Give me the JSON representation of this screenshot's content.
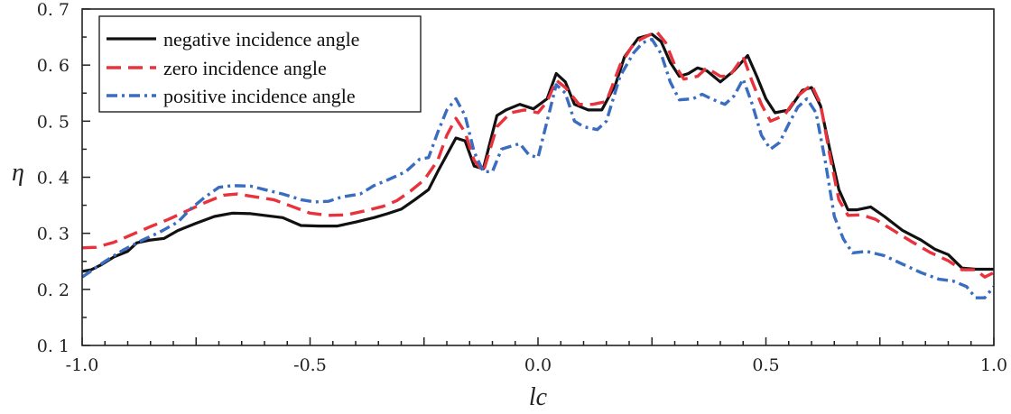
{
  "chart_data": {
    "type": "line",
    "title": "",
    "xlabel": "lc",
    "ylabel": "η",
    "xlim": [
      -1.0,
      1.0
    ],
    "ylim": [
      0.1,
      0.7
    ],
    "x_ticks": [
      {
        "value": -1.0,
        "label": "-1.0"
      },
      {
        "value": -0.5,
        "label": "-0.5"
      },
      {
        "value": 0.0,
        "label": "0.0"
      },
      {
        "value": 0.5,
        "label": "0.5"
      },
      {
        "value": 1.0,
        "label": "1.0"
      }
    ],
    "y_ticks": [
      {
        "value": 0.1,
        "label": "0. 1"
      },
      {
        "value": 0.2,
        "label": "0. 2"
      },
      {
        "value": 0.3,
        "label": "0. 3"
      },
      {
        "value": 0.4,
        "label": "0. 4"
      },
      {
        "value": 0.5,
        "label": "0. 5"
      },
      {
        "value": 0.6,
        "label": "0. 6"
      },
      {
        "value": 0.7,
        "label": "0. 7"
      }
    ],
    "legend_position": "top-left",
    "series": [
      {
        "name": "negative incidence angle",
        "color": "#111111",
        "style": "solid",
        "points": [
          [
            -1.0,
            0.232
          ],
          [
            -0.98,
            0.235
          ],
          [
            -0.96,
            0.243
          ],
          [
            -0.93,
            0.258
          ],
          [
            -0.9,
            0.268
          ],
          [
            -0.88,
            0.283
          ],
          [
            -0.85,
            0.288
          ],
          [
            -0.82,
            0.291
          ],
          [
            -0.79,
            0.305
          ],
          [
            -0.75,
            0.318
          ],
          [
            -0.71,
            0.33
          ],
          [
            -0.67,
            0.336
          ],
          [
            -0.63,
            0.335
          ],
          [
            -0.6,
            0.332
          ],
          [
            -0.56,
            0.328
          ],
          [
            -0.52,
            0.314
          ],
          [
            -0.48,
            0.313
          ],
          [
            -0.44,
            0.313
          ],
          [
            -0.4,
            0.32
          ],
          [
            -0.36,
            0.328
          ],
          [
            -0.33,
            0.335
          ],
          [
            -0.3,
            0.343
          ],
          [
            -0.27,
            0.36
          ],
          [
            -0.24,
            0.378
          ],
          [
            -0.22,
            0.41
          ],
          [
            -0.2,
            0.44
          ],
          [
            -0.18,
            0.47
          ],
          [
            -0.16,
            0.465
          ],
          [
            -0.14,
            0.42
          ],
          [
            -0.12,
            0.415
          ],
          [
            -0.09,
            0.51
          ],
          [
            -0.07,
            0.52
          ],
          [
            -0.04,
            0.53
          ],
          [
            -0.01,
            0.522
          ],
          [
            0.02,
            0.54
          ],
          [
            0.04,
            0.585
          ],
          [
            0.06,
            0.57
          ],
          [
            0.08,
            0.53
          ],
          [
            0.11,
            0.52
          ],
          [
            0.14,
            0.52
          ],
          [
            0.17,
            0.565
          ],
          [
            0.19,
            0.615
          ],
          [
            0.22,
            0.648
          ],
          [
            0.25,
            0.655
          ],
          [
            0.27,
            0.642
          ],
          [
            0.29,
            0.605
          ],
          [
            0.31,
            0.58
          ],
          [
            0.33,
            0.585
          ],
          [
            0.35,
            0.595
          ],
          [
            0.37,
            0.59
          ],
          [
            0.4,
            0.57
          ],
          [
            0.43,
            0.59
          ],
          [
            0.46,
            0.617
          ],
          [
            0.48,
            0.58
          ],
          [
            0.5,
            0.54
          ],
          [
            0.52,
            0.515
          ],
          [
            0.55,
            0.52
          ],
          [
            0.58,
            0.555
          ],
          [
            0.6,
            0.56
          ],
          [
            0.62,
            0.527
          ],
          [
            0.64,
            0.45
          ],
          [
            0.66,
            0.378
          ],
          [
            0.68,
            0.342
          ],
          [
            0.7,
            0.342
          ],
          [
            0.73,
            0.347
          ],
          [
            0.76,
            0.33
          ],
          [
            0.8,
            0.305
          ],
          [
            0.84,
            0.288
          ],
          [
            0.87,
            0.272
          ],
          [
            0.9,
            0.262
          ],
          [
            0.93,
            0.238
          ],
          [
            0.96,
            0.236
          ],
          [
            0.98,
            0.236
          ],
          [
            1.0,
            0.236
          ]
        ]
      },
      {
        "name": "zero incidence angle",
        "color": "#e8323c",
        "style": "dashed",
        "points": [
          [
            -1.0,
            0.274
          ],
          [
            -0.97,
            0.275
          ],
          [
            -0.93,
            0.284
          ],
          [
            -0.89,
            0.298
          ],
          [
            -0.85,
            0.312
          ],
          [
            -0.81,
            0.325
          ],
          [
            -0.77,
            0.34
          ],
          [
            -0.73,
            0.355
          ],
          [
            -0.69,
            0.368
          ],
          [
            -0.66,
            0.37
          ],
          [
            -0.62,
            0.365
          ],
          [
            -0.58,
            0.36
          ],
          [
            -0.54,
            0.348
          ],
          [
            -0.5,
            0.336
          ],
          [
            -0.46,
            0.332
          ],
          [
            -0.42,
            0.333
          ],
          [
            -0.38,
            0.34
          ],
          [
            -0.34,
            0.348
          ],
          [
            -0.31,
            0.358
          ],
          [
            -0.28,
            0.375
          ],
          [
            -0.25,
            0.395
          ],
          [
            -0.22,
            0.43
          ],
          [
            -0.2,
            0.475
          ],
          [
            -0.18,
            0.505
          ],
          [
            -0.16,
            0.48
          ],
          [
            -0.14,
            0.43
          ],
          [
            -0.12,
            0.41
          ],
          [
            -0.09,
            0.49
          ],
          [
            -0.06,
            0.515
          ],
          [
            -0.03,
            0.52
          ],
          [
            0.0,
            0.515
          ],
          [
            0.02,
            0.535
          ],
          [
            0.04,
            0.573
          ],
          [
            0.06,
            0.56
          ],
          [
            0.09,
            0.53
          ],
          [
            0.12,
            0.53
          ],
          [
            0.15,
            0.535
          ],
          [
            0.18,
            0.6
          ],
          [
            0.21,
            0.638
          ],
          [
            0.23,
            0.648
          ],
          [
            0.26,
            0.66
          ],
          [
            0.28,
            0.64
          ],
          [
            0.3,
            0.6
          ],
          [
            0.32,
            0.575
          ],
          [
            0.35,
            0.58
          ],
          [
            0.37,
            0.595
          ],
          [
            0.4,
            0.58
          ],
          [
            0.42,
            0.58
          ],
          [
            0.45,
            0.615
          ],
          [
            0.47,
            0.57
          ],
          [
            0.49,
            0.53
          ],
          [
            0.51,
            0.5
          ],
          [
            0.54,
            0.51
          ],
          [
            0.57,
            0.545
          ],
          [
            0.6,
            0.565
          ],
          [
            0.62,
            0.53
          ],
          [
            0.64,
            0.44
          ],
          [
            0.66,
            0.36
          ],
          [
            0.68,
            0.332
          ],
          [
            0.71,
            0.333
          ],
          [
            0.74,
            0.325
          ],
          [
            0.78,
            0.305
          ],
          [
            0.82,
            0.285
          ],
          [
            0.86,
            0.266
          ],
          [
            0.9,
            0.251
          ],
          [
            0.93,
            0.235
          ],
          [
            0.96,
            0.235
          ],
          [
            0.98,
            0.222
          ],
          [
            1.0,
            0.23
          ]
        ]
      },
      {
        "name": "positive incidence angle",
        "color": "#3a6cc0",
        "style": "dashdot",
        "points": [
          [
            -1.0,
            0.222
          ],
          [
            -0.98,
            0.233
          ],
          [
            -0.95,
            0.25
          ],
          [
            -0.91,
            0.27
          ],
          [
            -0.87,
            0.287
          ],
          [
            -0.83,
            0.302
          ],
          [
            -0.79,
            0.32
          ],
          [
            -0.76,
            0.345
          ],
          [
            -0.73,
            0.365
          ],
          [
            -0.7,
            0.382
          ],
          [
            -0.67,
            0.385
          ],
          [
            -0.63,
            0.384
          ],
          [
            -0.6,
            0.378
          ],
          [
            -0.56,
            0.37
          ],
          [
            -0.52,
            0.36
          ],
          [
            -0.49,
            0.356
          ],
          [
            -0.46,
            0.357
          ],
          [
            -0.43,
            0.365
          ],
          [
            -0.39,
            0.37
          ],
          [
            -0.36,
            0.385
          ],
          [
            -0.33,
            0.395
          ],
          [
            -0.29,
            0.41
          ],
          [
            -0.26,
            0.432
          ],
          [
            -0.24,
            0.435
          ],
          [
            -0.22,
            0.48
          ],
          [
            -0.2,
            0.52
          ],
          [
            -0.18,
            0.54
          ],
          [
            -0.16,
            0.51
          ],
          [
            -0.14,
            0.445
          ],
          [
            -0.12,
            0.41
          ],
          [
            -0.1,
            0.41
          ],
          [
            -0.08,
            0.45
          ],
          [
            -0.06,
            0.455
          ],
          [
            -0.04,
            0.46
          ],
          [
            -0.02,
            0.44
          ],
          [
            0.0,
            0.435
          ],
          [
            0.02,
            0.5
          ],
          [
            0.04,
            0.565
          ],
          [
            0.06,
            0.55
          ],
          [
            0.08,
            0.5
          ],
          [
            0.1,
            0.49
          ],
          [
            0.13,
            0.485
          ],
          [
            0.15,
            0.5
          ],
          [
            0.18,
            0.58
          ],
          [
            0.21,
            0.622
          ],
          [
            0.23,
            0.64
          ],
          [
            0.25,
            0.646
          ],
          [
            0.27,
            0.62
          ],
          [
            0.29,
            0.57
          ],
          [
            0.31,
            0.538
          ],
          [
            0.34,
            0.54
          ],
          [
            0.36,
            0.548
          ],
          [
            0.38,
            0.54
          ],
          [
            0.41,
            0.53
          ],
          [
            0.43,
            0.545
          ],
          [
            0.45,
            0.575
          ],
          [
            0.47,
            0.53
          ],
          [
            0.49,
            0.475
          ],
          [
            0.51,
            0.45
          ],
          [
            0.53,
            0.462
          ],
          [
            0.55,
            0.495
          ],
          [
            0.57,
            0.525
          ],
          [
            0.59,
            0.54
          ],
          [
            0.61,
            0.515
          ],
          [
            0.63,
            0.43
          ],
          [
            0.65,
            0.33
          ],
          [
            0.67,
            0.29
          ],
          [
            0.69,
            0.265
          ],
          [
            0.72,
            0.268
          ],
          [
            0.76,
            0.26
          ],
          [
            0.8,
            0.245
          ],
          [
            0.84,
            0.23
          ],
          [
            0.88,
            0.218
          ],
          [
            0.91,
            0.215
          ],
          [
            0.94,
            0.205
          ],
          [
            0.96,
            0.185
          ],
          [
            0.98,
            0.185
          ],
          [
            1.0,
            0.205
          ]
        ]
      }
    ]
  }
}
